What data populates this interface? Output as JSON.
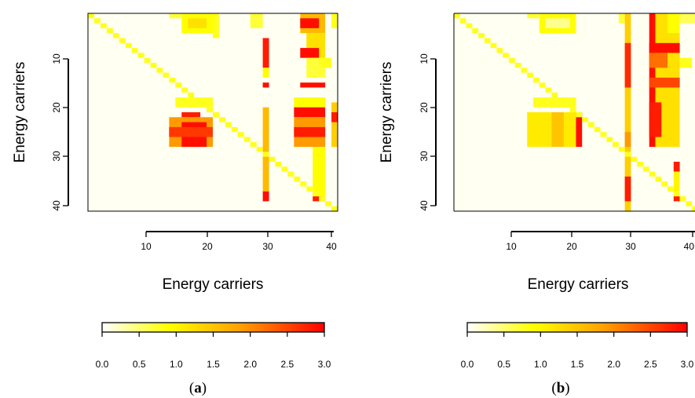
{
  "chart_data": [
    {
      "type": "heatmap",
      "caption": "a",
      "xlabel": "Energy carriers",
      "ylabel": "Energy carriers",
      "x_ticks": [
        10,
        20,
        30,
        40
      ],
      "y_ticks": [
        10,
        20,
        30,
        40
      ],
      "x_range": [
        1,
        40
      ],
      "y_range": [
        1,
        40
      ],
      "colorbar": {
        "min": 0.0,
        "max": 3.0,
        "ticks": [
          "0.0",
          "0.5",
          "1.0",
          "1.5",
          "2.0",
          "2.5",
          "3.0"
        ]
      },
      "diagonal_value": 0.8,
      "blocks": [
        {
          "rows": [
            1,
            1
          ],
          "cols": [
            14,
            15
          ],
          "value": 0.7
        },
        {
          "rows": [
            1,
            4
          ],
          "cols": [
            16,
            20
          ],
          "value": 0.9
        },
        {
          "rows": [
            2,
            3
          ],
          "cols": [
            17,
            19
          ],
          "value": 1.2
        },
        {
          "rows": [
            1,
            5
          ],
          "cols": [
            21,
            21
          ],
          "value": 0.8
        },
        {
          "rows": [
            1,
            3
          ],
          "cols": [
            27,
            28
          ],
          "value": 0.7
        },
        {
          "rows": [
            6,
            11
          ],
          "cols": [
            29,
            29
          ],
          "value": 2.8
        },
        {
          "rows": [
            12,
            13
          ],
          "cols": [
            29,
            29
          ],
          "value": 0.9
        },
        {
          "rows": [
            15,
            15
          ],
          "cols": [
            29,
            29
          ],
          "value": 2.9
        },
        {
          "rows": [
            20,
            36
          ],
          "cols": [
            29,
            29
          ],
          "value": 1.6
        },
        {
          "rows": [
            37,
            38
          ],
          "cols": [
            29,
            29
          ],
          "value": 2.9
        },
        {
          "rows": [
            1,
            4
          ],
          "cols": [
            35,
            38
          ],
          "value": 1.6
        },
        {
          "rows": [
            2,
            3
          ],
          "cols": [
            35,
            37
          ],
          "value": 2.9
        },
        {
          "rows": [
            5,
            9
          ],
          "cols": [
            36,
            38
          ],
          "value": 1.2
        },
        {
          "rows": [
            8,
            9
          ],
          "cols": [
            35,
            37
          ],
          "value": 2.9
        },
        {
          "rows": [
            10,
            13
          ],
          "cols": [
            36,
            38
          ],
          "value": 0.7
        },
        {
          "rows": [
            15,
            15
          ],
          "cols": [
            35,
            38
          ],
          "value": 2.9
        },
        {
          "rows": [
            18,
            19
          ],
          "cols": [
            34,
            38
          ],
          "value": 0.9
        },
        {
          "rows": [
            20,
            21
          ],
          "cols": [
            34,
            38
          ],
          "value": 2.9
        },
        {
          "rows": [
            22,
            27
          ],
          "cols": [
            34,
            38
          ],
          "value": 1.9
        },
        {
          "rows": [
            24,
            25
          ],
          "cols": [
            34,
            38
          ],
          "value": 2.8
        },
        {
          "rows": [
            28,
            37
          ],
          "cols": [
            37,
            38
          ],
          "value": 0.9
        },
        {
          "rows": [
            38,
            38
          ],
          "cols": [
            37,
            38
          ],
          "value": 2.8
        },
        {
          "rows": [
            10,
            11
          ],
          "cols": [
            38,
            39
          ],
          "value": 0.8
        },
        {
          "rows": [
            1,
            3
          ],
          "cols": [
            40,
            40
          ],
          "value": 0.8
        },
        {
          "rows": [
            19,
            27
          ],
          "cols": [
            40,
            40
          ],
          "value": 1.4
        },
        {
          "rows": [
            21,
            22
          ],
          "cols": [
            40,
            40
          ],
          "value": 2.8
        },
        {
          "rows": [
            18,
            19
          ],
          "cols": [
            15,
            20
          ],
          "value": 0.8
        },
        {
          "rows": [
            21,
            21
          ],
          "cols": [
            16,
            18
          ],
          "value": 2.8
        },
        {
          "rows": [
            22,
            27
          ],
          "cols": [
            14,
            20
          ],
          "value": 1.9
        },
        {
          "rows": [
            23,
            27
          ],
          "cols": [
            16,
            19
          ],
          "value": 2.9
        },
        {
          "rows": [
            24,
            25
          ],
          "cols": [
            14,
            20
          ],
          "value": 2.6
        }
      ]
    },
    {
      "type": "heatmap",
      "caption": "b",
      "xlabel": "Energy carriers",
      "ylabel": "Energy carriers",
      "x_ticks": [
        10,
        20,
        30,
        40
      ],
      "y_ticks": [
        10,
        20,
        30,
        40
      ],
      "x_range": [
        1,
        40
      ],
      "y_range": [
        1,
        40
      ],
      "colorbar": {
        "min": 0.0,
        "max": 3.0,
        "ticks": [
          "0.0",
          "0.5",
          "1.0",
          "1.5",
          "2.0",
          "2.5",
          "3.0"
        ]
      },
      "diagonal_value": 0.8,
      "blocks": [
        {
          "rows": [
            1,
            1
          ],
          "cols": [
            13,
            14
          ],
          "value": 0.7
        },
        {
          "rows": [
            1,
            4
          ],
          "cols": [
            15,
            20
          ],
          "value": 0.9
        },
        {
          "rows": [
            2,
            3
          ],
          "cols": [
            16,
            19
          ],
          "value": 0.4
        },
        {
          "rows": [
            1,
            2
          ],
          "cols": [
            28,
            28
          ],
          "value": 0.7
        },
        {
          "rows": [
            1,
            40
          ],
          "cols": [
            29,
            29
          ],
          "value": 1.4
        },
        {
          "rows": [
            7,
            15
          ],
          "cols": [
            29,
            29
          ],
          "value": 2.7
        },
        {
          "rows": [
            25,
            27
          ],
          "cols": [
            29,
            29
          ],
          "value": 1.9
        },
        {
          "rows": [
            34,
            38
          ],
          "cols": [
            29,
            29
          ],
          "value": 2.8
        },
        {
          "rows": [
            1,
            27
          ],
          "cols": [
            33,
            33
          ],
          "value": 2.9
        },
        {
          "rows": [
            1,
            27
          ],
          "cols": [
            34,
            37
          ],
          "value": 1.2
        },
        {
          "rows": [
            7,
            8
          ],
          "cols": [
            33,
            37
          ],
          "value": 2.9
        },
        {
          "rows": [
            9,
            11
          ],
          "cols": [
            33,
            35
          ],
          "value": 2.2
        },
        {
          "rows": [
            14,
            15
          ],
          "cols": [
            33,
            37
          ],
          "value": 2.5
        },
        {
          "rows": [
            19,
            25
          ],
          "cols": [
            33,
            34
          ],
          "value": 2.8
        },
        {
          "rows": [
            1,
            4
          ],
          "cols": [
            36,
            37
          ],
          "value": 0.9
        },
        {
          "rows": [
            31,
            32
          ],
          "cols": [
            37,
            37
          ],
          "value": 2.8
        },
        {
          "rows": [
            33,
            37
          ],
          "cols": [
            37,
            37
          ],
          "value": 1.0
        },
        {
          "rows": [
            38,
            38
          ],
          "cols": [
            37,
            37
          ],
          "value": 2.8
        },
        {
          "rows": [
            10,
            11
          ],
          "cols": [
            38,
            39
          ],
          "value": 0.8
        },
        {
          "rows": [
            18,
            19
          ],
          "cols": [
            14,
            20
          ],
          "value": 0.8
        },
        {
          "rows": [
            21,
            27
          ],
          "cols": [
            13,
            20
          ],
          "value": 1.1
        },
        {
          "rows": [
            21,
            27
          ],
          "cols": [
            17,
            18
          ],
          "value": 1.5
        },
        {
          "rows": [
            21,
            27
          ],
          "cols": [
            21,
            21
          ],
          "value": 2.9
        },
        {
          "rows": [
            1,
            2
          ],
          "cols": [
            38,
            40
          ],
          "value": 0.6
        }
      ]
    }
  ]
}
